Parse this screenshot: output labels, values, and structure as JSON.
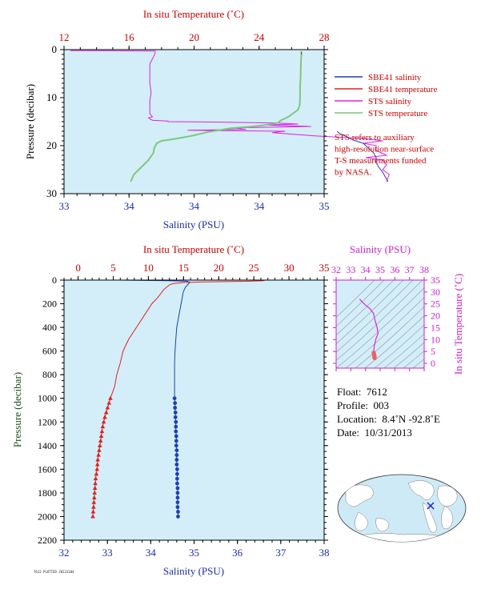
{
  "colors": {
    "plot_bg": "#d3eef8",
    "sbe_salinity": "#1e3fb4",
    "sbe_temperature": "#e02020",
    "sts_salinity": "#e020e0",
    "sts_temperature": "#7cc87c",
    "temp_axis": "#cc0000",
    "sal_axis": "#1a2ea8",
    "pressure_axis": "#1a4d1a",
    "ts_axis": "#cc22cc"
  },
  "chart_data": [
    {
      "id": "near-surface",
      "type": "line",
      "top_axis_label": "In situ Temperature (˚C)",
      "top_ticks": [
        "12",
        "16",
        "20",
        "24",
        "28"
      ],
      "xlim_temperature": [
        12,
        28
      ],
      "bottom_axis_label": "Salinity (PSU)",
      "bottom_ticks": [
        "33",
        "34",
        "34",
        "34",
        "35"
      ],
      "xlim_salinity": [
        33.0,
        35.0
      ],
      "ylabel": "Pressure (decibar)",
      "y_ticks": [
        "0",
        "10",
        "20",
        "30"
      ],
      "ylim": [
        0,
        30
      ],
      "legend": [
        {
          "label": "SBE41 salinity",
          "color_key": "sbe_salinity"
        },
        {
          "label": "SBE41 temperature",
          "color_key": "sbe_temperature"
        },
        {
          "label": "STS salinity",
          "color_key": "sts_salinity"
        },
        {
          "label": "STS temperature",
          "color_key": "sts_temperature"
        }
      ],
      "note": [
        "STS refers to auxiliary",
        "high-resolution near-surface",
        "T-S measurements funded",
        "by NASA."
      ],
      "series": [
        {
          "name": "STS salinity",
          "quantity": "salinity",
          "x": [
            33.05,
            33.7,
            33.7,
            33.66,
            33.66,
            33.66,
            33.67,
            33.66,
            33.66,
            33.66,
            33.66,
            33.66,
            33.67,
            33.68,
            33.65,
            33.66,
            33.68,
            33.8,
            33.8,
            34.2,
            34.65,
            34.8,
            34.55,
            34.9,
            34.3,
            34.4,
            33.95,
            34.7,
            34.6,
            34.8,
            34.95,
            35.3,
            35.45,
            35.3,
            35.4,
            35.4,
            35.48,
            35.32,
            35.45,
            35.48,
            35.45,
            35.5,
            35.48
          ],
          "y": [
            0.2,
            0.3,
            0.8,
            3.0,
            5.0,
            7.0,
            9.0,
            10.5,
            11.5,
            12.4,
            12.8,
            13.3,
            13.7,
            14.0,
            14.2,
            14.4,
            14.7,
            14.9,
            15.0,
            15.1,
            15.3,
            15.5,
            15.7,
            16.0,
            16.3,
            16.6,
            16.8,
            17.0,
            17.3,
            17.7,
            18.0,
            18.5,
            19.0,
            19.5,
            20.0,
            21.0,
            22.0,
            22.5,
            23.0,
            24.0,
            25.0,
            26.0,
            27.5
          ]
        },
        {
          "name": "STS temperature",
          "quantity": "temperature",
          "x": [
            26.6,
            26.6,
            26.58,
            26.56,
            26.55,
            26.52,
            26.52,
            26.5,
            26.4,
            26.2,
            26.0,
            25.8,
            25.55,
            25.3,
            25.2,
            24.8,
            24.2,
            23.6,
            22.2,
            20.8,
            19.8,
            18.8,
            18.0,
            17.7,
            17.55,
            17.5,
            17.4,
            17.2,
            16.9,
            16.6,
            16.3,
            16.1
          ],
          "y": [
            0.3,
            1.0,
            2.0,
            4.0,
            6.0,
            8.0,
            10.0,
            11.5,
            12.5,
            13.0,
            13.5,
            14.0,
            14.4,
            14.8,
            15.2,
            15.5,
            15.8,
            16.0,
            16.4,
            17.2,
            18.0,
            18.6,
            19.0,
            19.5,
            20.5,
            21.5,
            22.0,
            23.0,
            24.0,
            25.0,
            26.0,
            27.5
          ]
        },
        {
          "name": "SBE41 salinity",
          "quantity": "salinity",
          "x": [
            35.1,
            35.12,
            35.18,
            35.22,
            35.3,
            35.34,
            35.38,
            35.4,
            35.4,
            35.42,
            35.45,
            35.47,
            35.49
          ],
          "y": [
            17.0,
            17.5,
            18.2,
            18.8,
            19.5,
            20.5,
            21.5,
            22.5,
            23.5,
            24.5,
            25.5,
            26.5,
            27.5
          ]
        },
        {
          "name": "SBE41 temperature",
          "quantity": "temperature",
          "x": [
            26.6,
            26.6
          ],
          "y": [
            0.5,
            1.0
          ]
        }
      ]
    },
    {
      "id": "full-profile",
      "type": "line",
      "top_axis_label": "In situ Temperature (˚C)",
      "top_ticks": [
        "0",
        "5",
        "10",
        "15",
        "20",
        "25",
        "30",
        "35"
      ],
      "xlim_temperature": [
        -2,
        35
      ],
      "bottom_axis_label": "Salinity (PSU)",
      "bottom_ticks": [
        "32",
        "33",
        "34",
        "35",
        "36",
        "37",
        "38"
      ],
      "xlim_salinity": [
        32,
        38
      ],
      "ylabel": "Pressure (decibar)",
      "y_ticks": [
        "0",
        "200",
        "400",
        "600",
        "800",
        "1000",
        "1200",
        "1400",
        "1600",
        "1800",
        "2000",
        "2200"
      ],
      "ylim": [
        0,
        2200
      ],
      "series": [
        {
          "name": "SBE41 temperature",
          "quantity": "temperature",
          "x": [
            26.6,
            26.3,
            24.0,
            18.0,
            15.0,
            13.5,
            13.0,
            12.6,
            12.2,
            11.3,
            10.5,
            9.4,
            8.3,
            7.2,
            6.4,
            6.0,
            5.5,
            5.2,
            4.9,
            4.7,
            4.6
          ],
          "y": [
            0,
            5,
            10,
            15,
            20,
            30,
            40,
            60,
            80,
            150,
            200,
            300,
            400,
            500,
            600,
            700,
            800,
            900,
            950,
            980,
            1000
          ],
          "markers": false
        },
        {
          "name": "SBE41 temperature",
          "quantity": "temperature",
          "x": [
            4.6,
            4.4,
            4.2,
            4.0,
            3.8,
            3.65,
            3.5,
            3.4,
            3.3,
            3.2,
            3.1,
            3.0,
            2.9,
            2.8,
            2.75,
            2.7,
            2.6,
            2.5,
            2.45,
            2.4,
            2.35,
            2.3,
            2.25,
            2.2,
            2.15,
            2.1
          ],
          "y": [
            1000,
            1040,
            1080,
            1120,
            1160,
            1200,
            1240,
            1280,
            1320,
            1360,
            1400,
            1440,
            1480,
            1520,
            1560,
            1600,
            1640,
            1680,
            1720,
            1760,
            1800,
            1840,
            1880,
            1920,
            1960,
            2000
          ],
          "markers": true
        },
        {
          "name": "SBE41 salinity",
          "quantity": "salinity",
          "x": [
            33.3,
            34.4,
            34.85,
            34.9,
            34.85,
            34.8,
            34.75,
            34.7,
            34.65,
            34.6,
            34.58,
            34.56,
            34.55,
            34.55,
            34.55
          ],
          "y": [
            0,
            5,
            10,
            20,
            40,
            60,
            100,
            200,
            300,
            400,
            500,
            600,
            700,
            800,
            1000
          ],
          "markers": false
        },
        {
          "name": "SBE41 salinity",
          "quantity": "salinity",
          "x": [
            34.55,
            34.56,
            34.56,
            34.57,
            34.57,
            34.58,
            34.58,
            34.58,
            34.59,
            34.59,
            34.59,
            34.6,
            34.6,
            34.6,
            34.6,
            34.61,
            34.61,
            34.61,
            34.61,
            34.62,
            34.62,
            34.62,
            34.62,
            34.62,
            34.63,
            34.63
          ],
          "y": [
            1000,
            1040,
            1080,
            1120,
            1160,
            1200,
            1240,
            1280,
            1320,
            1360,
            1400,
            1440,
            1480,
            1520,
            1560,
            1600,
            1640,
            1680,
            1720,
            1760,
            1800,
            1840,
            1880,
            1920,
            1960,
            2000
          ],
          "markers": true
        }
      ]
    },
    {
      "id": "ts-diagram",
      "type": "scatter",
      "top_axis_label": "Salinity (PSU)",
      "top_ticks": [
        "32",
        "33",
        "34",
        "35",
        "36",
        "37",
        "38"
      ],
      "xlim_salinity": [
        32,
        38
      ],
      "ylabel": "In situ Temperature (˚C)",
      "y_ticks": [
        "0",
        "5",
        "10",
        "15",
        "20",
        "25",
        "30",
        "35"
      ],
      "ylim": [
        -2,
        35
      ],
      "series": [
        {
          "name": "T-S",
          "x": [
            33.6,
            33.75,
            34.0,
            34.3,
            34.55,
            34.65,
            34.8,
            34.85,
            34.7,
            34.6,
            34.58,
            34.56,
            34.55
          ],
          "y": [
            27.0,
            26.0,
            24.5,
            23.0,
            21.0,
            18.0,
            15.0,
            12.5,
            10.0,
            7.5,
            6.0,
            5.0,
            4.6
          ]
        },
        {
          "name": "T-S deep",
          "x": [
            34.56,
            34.58,
            34.6,
            34.61,
            34.62,
            34.63,
            34.6,
            34.58
          ],
          "y": [
            4.5,
            4.0,
            3.5,
            3.0,
            2.6,
            2.2,
            2.5,
            3.8
          ]
        }
      ]
    }
  ],
  "info": {
    "float_label": "Float:",
    "float_value": "7612",
    "profile_label": "Profile:",
    "profile_value": "003",
    "location_label": "Location:",
    "location_value": "8.4˚N  -92.8˚E",
    "date_label": "Date:",
    "date_value": "10/31/2013"
  },
  "footer_text": "7612 PLOTTED 20131104"
}
